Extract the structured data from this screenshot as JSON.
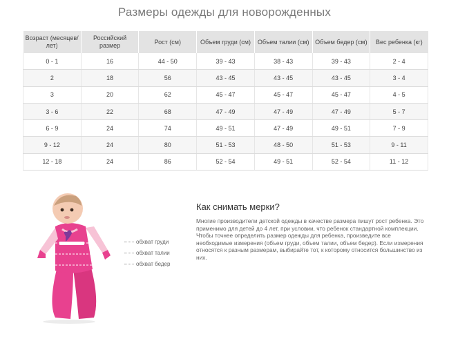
{
  "title": "Размеры одежды для новорожденных",
  "table": {
    "headers": [
      "Возраст (месяцев/лет)",
      "Российский размер",
      "Рост (см)",
      "Объем груди (см)",
      "Объем талии (см)",
      "Объем бедер (см)",
      "Вес ребенка (кг)"
    ],
    "rows": [
      [
        "0 - 1",
        "16",
        "44 - 50",
        "39 - 43",
        "38 - 43",
        "39 - 43",
        "2 - 4"
      ],
      [
        "2",
        "18",
        "56",
        "43 - 45",
        "43 - 45",
        "43 - 45",
        "3 - 4"
      ],
      [
        "3",
        "20",
        "62",
        "45 - 47",
        "45 - 47",
        "45 - 47",
        "4 - 5"
      ],
      [
        "3 - 6",
        "22",
        "68",
        "47 - 49",
        "47 - 49",
        "47 - 49",
        "5 - 7"
      ],
      [
        "6 - 9",
        "24",
        "74",
        "49 - 51",
        "47 - 49",
        "49 - 51",
        "7 - 9"
      ],
      [
        "9 - 12",
        "24",
        "80",
        "51 - 53",
        "48 - 50",
        "51 - 53",
        "9 - 11"
      ],
      [
        "12 - 18",
        "24",
        "86",
        "52 - 54",
        "49 - 51",
        "52 - 54",
        "11 - 12"
      ]
    ]
  },
  "labels": {
    "chest": "обхват груди",
    "waist": "обхват талии",
    "hips": "обхват бедер"
  },
  "section": {
    "heading": "Как снимать мерки?",
    "paragraph1": "Многие производители детской одежды в качестве размера пишут рост ребенка. Это применимо для детей до 4 лет, при условии, что ребенок стандартной комплекции.",
    "paragraph2": "Чтобы точнее определить размер одежды для ребенка, произведите все необходимые измерения (объем груди, объем талии, объем бедер). Если измерения относятся к разным размерам, выбирайте тот, к которому относится большинство из них."
  },
  "colors": {
    "header_bg": "#e3e3e3",
    "romper_pink": "#e8418f",
    "sleeve_light": "#f7c3d6"
  }
}
